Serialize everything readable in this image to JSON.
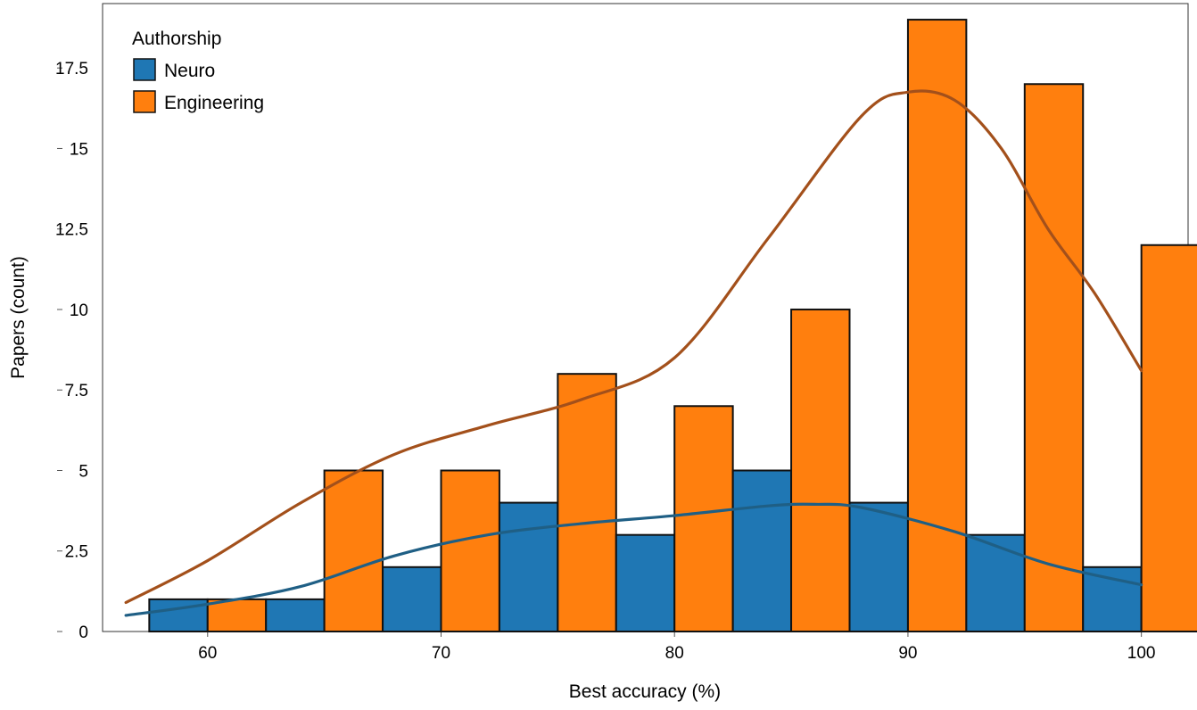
{
  "chart_data": {
    "type": "bar",
    "xlabel": "Best accuracy (%)",
    "ylabel": "Papers (count)",
    "xlim": [
      55.5,
      102
    ],
    "ylim": [
      0,
      19.5
    ],
    "xticks": [
      60,
      70,
      80,
      90,
      100
    ],
    "xtick_labels": [
      "60",
      "70",
      "80",
      "90",
      "100"
    ],
    "yticks": [
      0,
      2.5,
      5,
      7.5,
      10,
      12.5,
      15,
      17.5
    ],
    "ytick_labels": [
      "0",
      "2.5",
      "5",
      "7.5",
      "10",
      "12.5",
      "15",
      "17.5"
    ],
    "bin_width": 5,
    "bins": [
      [
        57.5,
        62.5
      ],
      [
        62.5,
        67.5
      ],
      [
        67.5,
        72.5
      ],
      [
        72.5,
        77.5
      ],
      [
        77.5,
        82.5
      ],
      [
        82.5,
        87.5
      ],
      [
        87.5,
        92.5
      ],
      [
        92.5,
        97.5
      ],
      [
        97.5,
        102.5
      ]
    ],
    "legend": {
      "title": "Authorship",
      "position": "top-left"
    },
    "grid": false,
    "series": [
      {
        "name": "Neuro",
        "color": "#1f77b4",
        "line_color": "#1f5f85",
        "values": [
          1,
          1,
          2,
          4,
          3,
          5,
          4,
          3,
          2
        ],
        "kde": {
          "x": [
            56.5,
            60,
            64,
            68,
            72,
            76,
            80,
            84,
            86,
            88,
            92,
            96,
            100
          ],
          "y": [
            0.5,
            0.85,
            1.4,
            2.35,
            3.0,
            3.35,
            3.6,
            3.9,
            3.95,
            3.85,
            3.1,
            2.1,
            1.45
          ]
        }
      },
      {
        "name": "Engineering",
        "color": "#ff7f0e",
        "line_color": "#a3501b",
        "values": [
          1,
          5,
          5,
          8,
          7,
          10,
          19,
          17,
          12
        ],
        "kde": {
          "x": [
            56.5,
            60,
            64,
            68,
            72,
            76,
            80,
            84,
            88,
            90,
            92,
            94,
            96,
            98,
            100
          ],
          "y": [
            0.9,
            2.2,
            4.0,
            5.5,
            6.4,
            7.2,
            8.5,
            12.2,
            16.0,
            16.75,
            16.5,
            15.0,
            12.5,
            10.5,
            8.1
          ]
        }
      }
    ]
  }
}
